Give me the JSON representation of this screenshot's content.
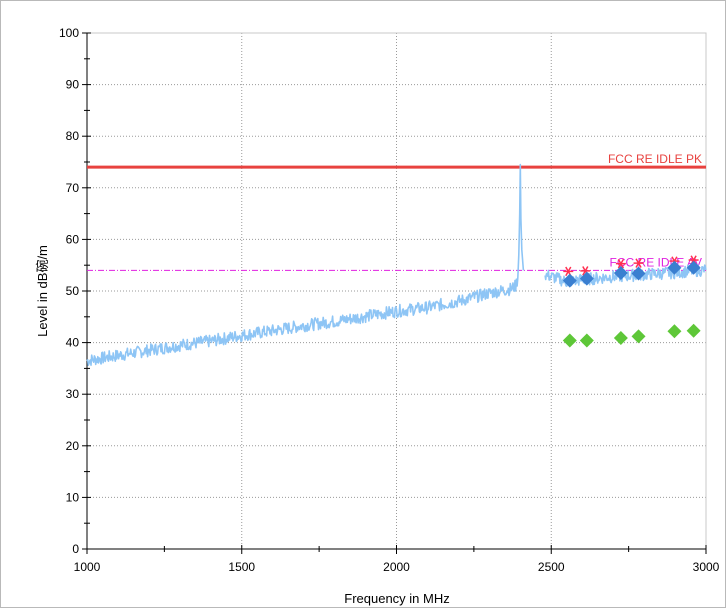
{
  "chart_data": {
    "type": "line",
    "xlabel": "Frequency in MHz",
    "ylabel": "Level in dB碗/m",
    "xlim": [
      1000,
      3000
    ],
    "ylim": [
      0,
      100
    ],
    "x_ticks": [
      1000,
      1500,
      2000,
      2500,
      3000
    ],
    "y_ticks": [
      0,
      10,
      20,
      30,
      40,
      50,
      60,
      70,
      80,
      90,
      100
    ],
    "grid": true,
    "limit_lines": [
      {
        "label": "FCC RE IDLE PK",
        "value": 74,
        "color": "#e8423f",
        "style": "solid"
      },
      {
        "label": "FCC RE IDLE AV",
        "value": 54,
        "color": "#e020e0",
        "style": "dashdot"
      }
    ],
    "series": [
      {
        "type": "trace",
        "color": "#8ec5f5",
        "segments": [
          {
            "x": [
              1000,
              1100,
              1200,
              1300,
              1400,
              1500,
              1600,
              1700,
              1800,
              1900,
              2000,
              2100,
              2200,
              2300,
              2370,
              2385,
              2392,
              2395,
              2398,
              2400,
              2402,
              2405,
              2410
            ],
            "y": [
              36.5,
              37.5,
              38.5,
              39.5,
              40.3,
              41.4,
              42.3,
              43.3,
              44.1,
              45.1,
              46.1,
              46.8,
              48.0,
              49.6,
              50.4,
              51.0,
              52.5,
              57.0,
              65.0,
              74.5,
              64.0,
              58.0,
              54.0
            ]
          },
          {
            "x": [
              2480,
              2550,
              2600,
              2650,
              2700,
              2750,
              2800,
              2850,
              2900,
              2950,
              3000
            ],
            "y": [
              53.2,
              51.8,
              52.2,
              52.5,
              52.8,
              53.0,
              53.2,
              53.4,
              53.6,
              53.9,
              54.1
            ]
          }
        ]
      },
      {
        "type": "markers",
        "marker": "star",
        "color": "#ff3050",
        "x": [
          2555,
          2610,
          2725,
          2782,
          2898,
          2960
        ],
        "y": [
          53.8,
          53.9,
          55.3,
          55.4,
          55.8,
          56.0
        ]
      },
      {
        "type": "markers",
        "marker": "diamond",
        "color": "#3a7fd0",
        "x": [
          2560,
          2615,
          2725,
          2782,
          2898,
          2960
        ],
        "y": [
          52.0,
          52.4,
          53.5,
          53.4,
          54.5,
          54.5
        ]
      },
      {
        "type": "markers",
        "marker": "diamond",
        "color": "#5ec738",
        "x": [
          2560,
          2615,
          2725,
          2782,
          2898,
          2960
        ],
        "y": [
          40.4,
          40.4,
          40.9,
          41.2,
          42.2,
          42.3
        ]
      }
    ]
  }
}
